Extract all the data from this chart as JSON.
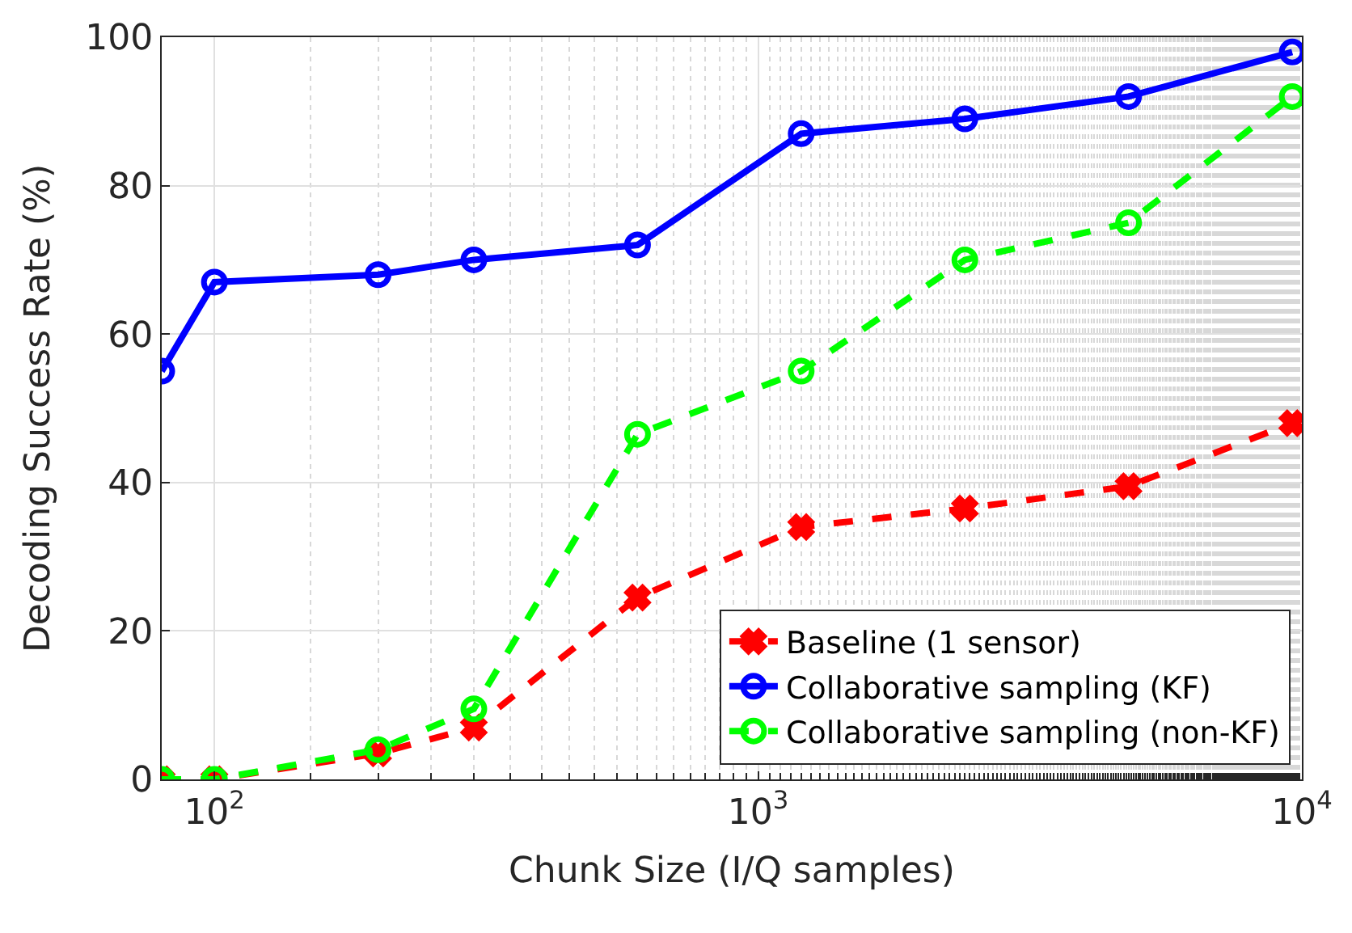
{
  "chart_data": {
    "type": "line",
    "xlabel": "Chunk Size (I/Q samples)",
    "ylabel": "Decoding Success Rate (%)",
    "x": [
      80,
      100,
      200,
      300,
      600,
      1200,
      2400,
      4800,
      9600
    ],
    "series": [
      {
        "name": "Baseline (1 sensor)",
        "color": "#ff0000",
        "marker": "cross",
        "line_style": "dashed",
        "values": [
          0,
          0,
          3.5,
          7,
          24.5,
          34,
          36.5,
          39.5,
          48
        ]
      },
      {
        "name": "Collaborative sampling (KF)",
        "color": "#0000ff",
        "marker": "circle",
        "line_style": "solid",
        "values": [
          55,
          67,
          68,
          70,
          72,
          87,
          89,
          92,
          98
        ]
      },
      {
        "name": "Collaborative sampling (non-KF)",
        "color": "#00ff00",
        "marker": "circle",
        "line_style": "dashed",
        "values": [
          0,
          0,
          4,
          9.5,
          46.5,
          55,
          70,
          75,
          92
        ]
      }
    ],
    "log": "x",
    "xlim": [
      80,
      10000
    ],
    "xticks": [
      {
        "value": 100,
        "label": "10$^{2}$"
      },
      {
        "value": 1000,
        "label": "10$^{3}$"
      },
      {
        "value": 10000,
        "label": "10$^{4}$"
      }
    ],
    "ylim": [
      0,
      100
    ],
    "yticks": [
      0,
      20,
      40,
      60,
      80,
      100
    ],
    "grid": true,
    "legend": "bottom right"
  }
}
